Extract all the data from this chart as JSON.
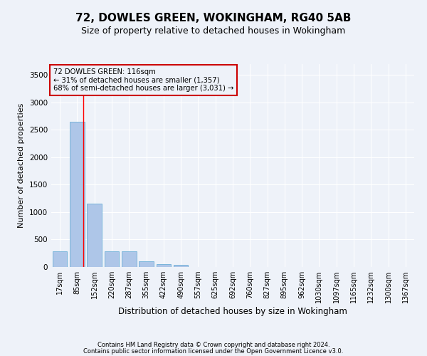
{
  "title1": "72, DOWLES GREEN, WOKINGHAM, RG40 5AB",
  "title2": "Size of property relative to detached houses in Wokingham",
  "xlabel": "Distribution of detached houses by size in Wokingham",
  "ylabel": "Number of detached properties",
  "bar_labels": [
    "17sqm",
    "85sqm",
    "152sqm",
    "220sqm",
    "287sqm",
    "355sqm",
    "422sqm",
    "490sqm",
    "557sqm",
    "625sqm",
    "692sqm",
    "760sqm",
    "827sqm",
    "895sqm",
    "962sqm",
    "1030sqm",
    "1097sqm",
    "1165sqm",
    "1232sqm",
    "1300sqm",
    "1367sqm"
  ],
  "bar_values": [
    280,
    2650,
    1150,
    285,
    285,
    105,
    55,
    45,
    0,
    0,
    0,
    0,
    0,
    0,
    0,
    0,
    0,
    0,
    0,
    0,
    0
  ],
  "bar_color": "#aec6e8",
  "bar_edge_color": "#6aaed6",
  "red_line_x": 1.35,
  "annotation_title": "72 DOWLES GREEN: 116sqm",
  "annotation_line1": "← 31% of detached houses are smaller (1,357)",
  "annotation_line2": "68% of semi-detached houses are larger (3,031) →",
  "annotation_box_color": "#cc0000",
  "ylim": [
    0,
    3700
  ],
  "yticks": [
    0,
    500,
    1000,
    1500,
    2000,
    2500,
    3000,
    3500
  ],
  "footer1": "Contains HM Land Registry data © Crown copyright and database right 2024.",
  "footer2": "Contains public sector information licensed under the Open Government Licence v3.0.",
  "bg_color": "#eef2f9",
  "grid_color": "#ffffff",
  "title1_fontsize": 11,
  "title2_fontsize": 9,
  "tick_fontsize": 7,
  "ylabel_fontsize": 8,
  "xlabel_fontsize": 8.5
}
